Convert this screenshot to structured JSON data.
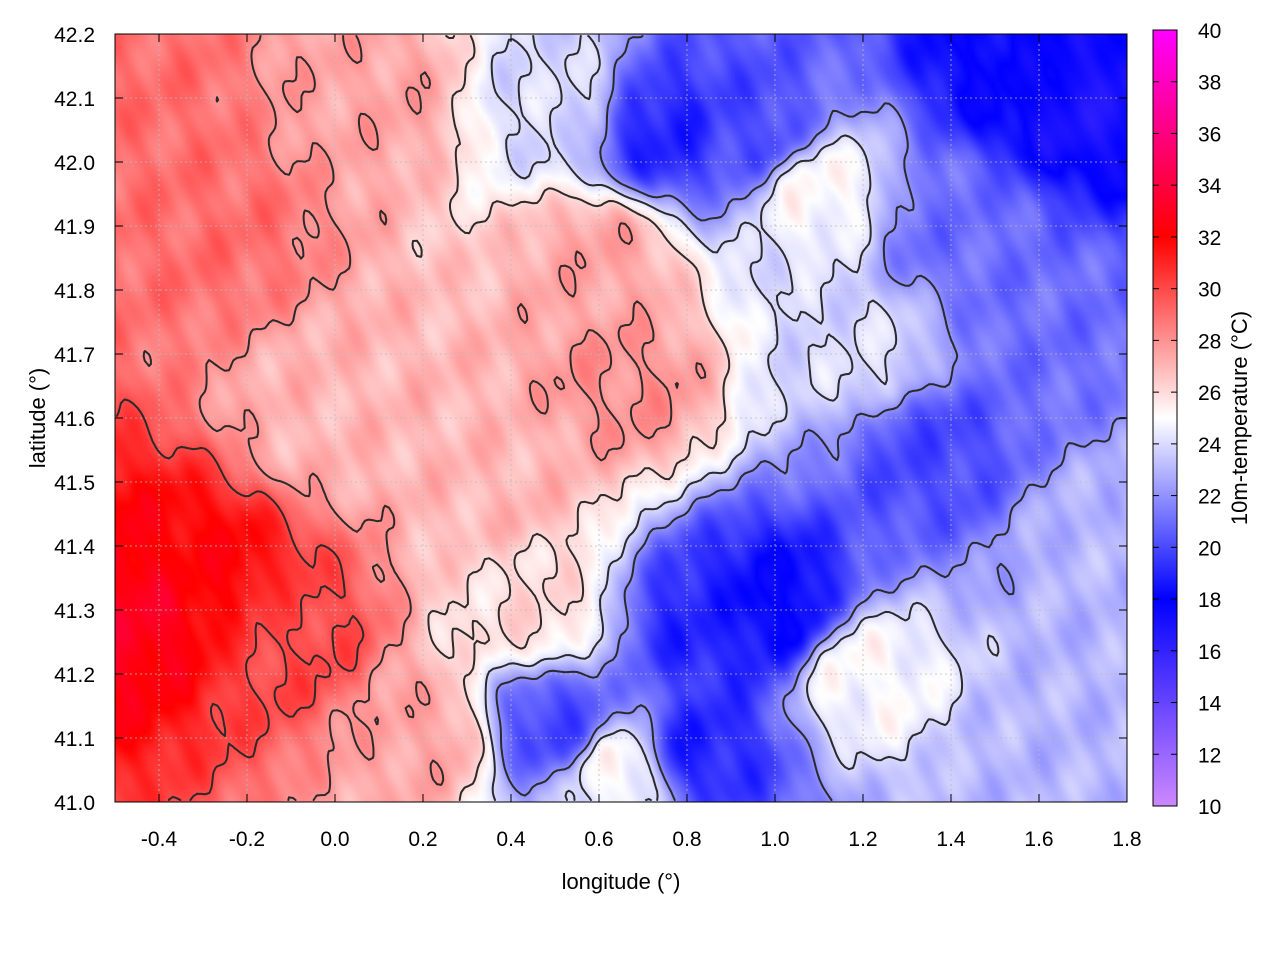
{
  "chart_data": {
    "type": "heatmap",
    "title": "",
    "xlabel": "longitude (°)",
    "ylabel": "latitude (°)",
    "colorbar_label": "10m-temperature (°C)",
    "xlim": [
      -0.5,
      1.8
    ],
    "ylim": [
      41.0,
      42.2
    ],
    "xticks": [
      "-0.4",
      "-0.2",
      "0.0",
      "0.2",
      "0.4",
      "0.6",
      "0.8",
      "1.0",
      "1.2",
      "1.4",
      "1.6",
      "1.8"
    ],
    "yticks": [
      "41.0",
      "41.1",
      "41.2",
      "41.3",
      "41.4",
      "41.5",
      "41.6",
      "41.7",
      "41.8",
      "41.9",
      "42.0",
      "42.1",
      "42.2"
    ],
    "colorbar_range": [
      10,
      40
    ],
    "colorbar_ticks": [
      "10",
      "12",
      "14",
      "16",
      "18",
      "20",
      "22",
      "24",
      "26",
      "28",
      "30",
      "32",
      "34",
      "36",
      "38",
      "40"
    ],
    "grid": true,
    "contour_levels": [
      22,
      24,
      26,
      28,
      30
    ],
    "colormap_stops": [
      {
        "value": 10,
        "color": "#cc88ff"
      },
      {
        "value": 18,
        "color": "#0000ff"
      },
      {
        "value": 25,
        "color": "#ffffff"
      },
      {
        "value": 32,
        "color": "#ff0000"
      },
      {
        "value": 40,
        "color": "#ff00ff"
      }
    ],
    "field_approx": {
      "description_points": [
        {
          "lon": -0.45,
          "lat": 41.3,
          "value": 33
        },
        {
          "lon": -0.3,
          "lat": 41.35,
          "value": 32
        },
        {
          "lon": -0.1,
          "lat": 41.25,
          "value": 30
        },
        {
          "lon": -0.3,
          "lat": 41.9,
          "value": 29
        },
        {
          "lon": 0.0,
          "lat": 41.6,
          "value": 27
        },
        {
          "lon": 0.2,
          "lat": 41.1,
          "value": 27.5
        },
        {
          "lon": 0.4,
          "lat": 41.5,
          "value": 27
        },
        {
          "lon": 0.65,
          "lat": 41.65,
          "value": 28
        },
        {
          "lon": 0.6,
          "lat": 41.85,
          "value": 27.5
        },
        {
          "lon": 0.1,
          "lat": 42.1,
          "value": 27.5
        },
        {
          "lon": -0.45,
          "lat": 42.1,
          "value": 29
        },
        {
          "lon": 0.5,
          "lat": 42.1,
          "value": 24
        },
        {
          "lon": 0.75,
          "lat": 42.05,
          "value": 19
        },
        {
          "lon": 0.95,
          "lat": 42.05,
          "value": 20
        },
        {
          "lon": 1.1,
          "lat": 41.95,
          "value": 25
        },
        {
          "lon": 1.55,
          "lat": 42.15,
          "value": 18
        },
        {
          "lon": 1.7,
          "lat": 42.1,
          "value": 17
        },
        {
          "lon": 1.4,
          "lat": 41.9,
          "value": 21
        },
        {
          "lon": 1.6,
          "lat": 41.75,
          "value": 21
        },
        {
          "lon": 1.35,
          "lat": 41.55,
          "value": 20
        },
        {
          "lon": 1.2,
          "lat": 41.7,
          "value": 24
        },
        {
          "lon": 1.0,
          "lat": 41.3,
          "value": 18
        },
        {
          "lon": 0.85,
          "lat": 41.28,
          "value": 19
        },
        {
          "lon": 0.82,
          "lat": 41.08,
          "value": 19
        },
        {
          "lon": 0.5,
          "lat": 41.12,
          "value": 20
        },
        {
          "lon": 0.65,
          "lat": 41.05,
          "value": 25
        },
        {
          "lon": 1.2,
          "lat": 41.2,
          "value": 25
        },
        {
          "lon": 1.6,
          "lat": 41.05,
          "value": 23
        },
        {
          "lon": 1.75,
          "lat": 41.4,
          "value": 23
        },
        {
          "lon": 0.45,
          "lat": 41.3,
          "value": 26
        }
      ]
    }
  }
}
